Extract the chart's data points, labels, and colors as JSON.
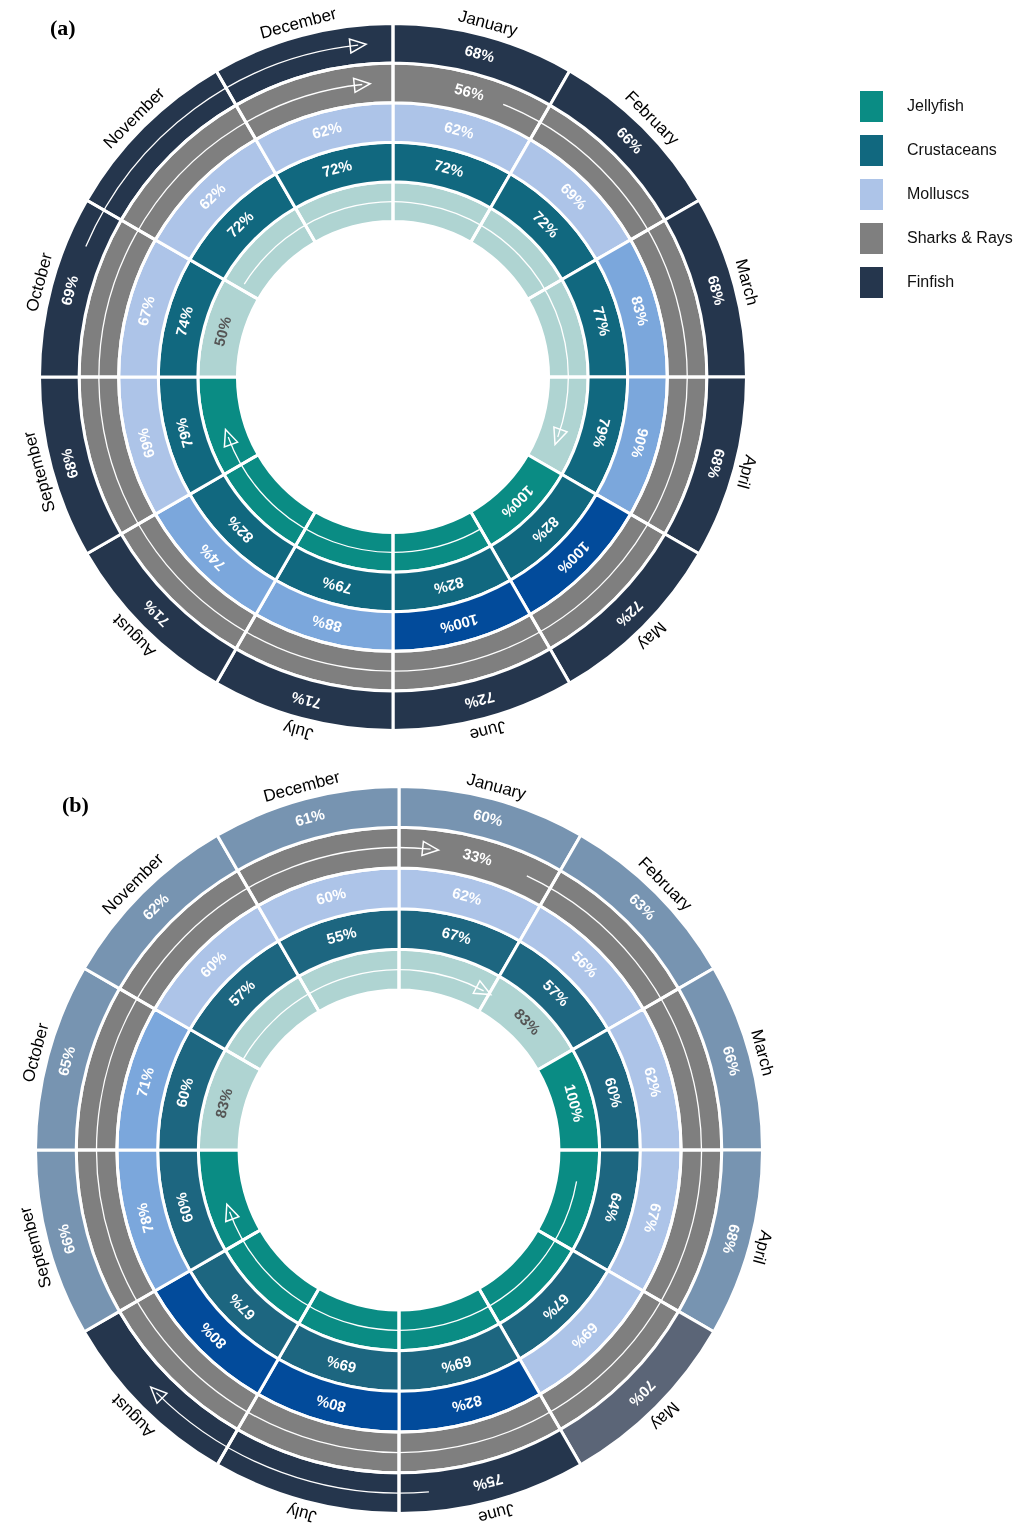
{
  "chart_data": [
    {
      "type": "other",
      "title": "(a)",
      "legend": "top right",
      "categories": [
        "January",
        "February",
        "March",
        "April",
        "May",
        "June",
        "July",
        "August",
        "September",
        "October",
        "November",
        "December"
      ],
      "series": [
        {
          "name": "Finfish",
          "color": "#25364d",
          "values": [
            68,
            66,
            68,
            68,
            72,
            72,
            71,
            71,
            68,
            69,
            null,
            null
          ],
          "colors": [
            "#25364d",
            "#25364d",
            "#25364d",
            "#25364d",
            "#25364d",
            "#25364d",
            "#25364d",
            "#25364d",
            "#25364d",
            "#25364d",
            "#25364d",
            "#25364d"
          ],
          "value_labels": [
            "68%",
            "66%",
            "68%",
            "68%",
            "72%",
            "72%",
            "71%",
            "71%",
            "68%",
            "69%",
            null,
            null
          ]
        },
        {
          "name": "Sharks & Rays",
          "color": "#7f7f7f",
          "values": [
            56,
            null,
            null,
            null,
            null,
            null,
            null,
            null,
            null,
            null,
            null,
            null
          ],
          "colors": [
            "#7f7f7f",
            "#7f7f7f",
            "#7f7f7f",
            "#7f7f7f",
            "#7f7f7f",
            "#7f7f7f",
            "#7f7f7f",
            "#7f7f7f",
            "#7f7f7f",
            "#7f7f7f",
            "#7f7f7f",
            "#7f7f7f"
          ],
          "value_labels": [
            "56%",
            null,
            null,
            null,
            null,
            null,
            null,
            null,
            null,
            null,
            null,
            null
          ]
        },
        {
          "name": "Molluscs",
          "color": "#adc4e8",
          "values": [
            62,
            69,
            83,
            90,
            100,
            100,
            88,
            74,
            69,
            67,
            62,
            62
          ],
          "colors": [
            "#adc4e8",
            "#adc4e8",
            "#7ba7dc",
            "#7ba7dc",
            "#024b9b",
            "#024b9b",
            "#7ba7dc",
            "#7ba7dc",
            "#adc4e8",
            "#adc4e8",
            "#adc4e8",
            "#adc4e8"
          ],
          "value_labels": [
            "62%",
            "69%",
            "83%",
            "90%",
            "100%",
            "100%",
            "88%",
            "74%",
            "69%",
            "67%",
            "62%",
            "62%"
          ]
        },
        {
          "name": "Crustaceans",
          "color": "#11687f",
          "values": [
            72,
            72,
            77,
            79,
            82,
            82,
            79,
            82,
            79,
            74,
            72,
            72
          ],
          "colors": [
            "#11687f",
            "#11687f",
            "#11687f",
            "#11687f",
            "#11687f",
            "#11687f",
            "#11687f",
            "#11687f",
            "#11687f",
            "#11687f",
            "#11687f",
            "#11687f"
          ],
          "value_labels": [
            "72%",
            "72%",
            "77%",
            "79%",
            "82%",
            "82%",
            "79%",
            "82%",
            "79%",
            "74%",
            "72%",
            "72%"
          ]
        },
        {
          "name": "Jellyfish",
          "color": "#0a8c84",
          "values": [
            null,
            null,
            null,
            null,
            100,
            null,
            null,
            null,
            null,
            50,
            null,
            null
          ],
          "colors": [
            "#afd4d2",
            "#afd4d2",
            "#afd4d2",
            "#afd4d2",
            "#0a8c84",
            "#0a8c84",
            "#0a8c84",
            "#0a8c84",
            "#0a8c84",
            "#afd4d2",
            "#afd4d2",
            "#afd4d2"
          ],
          "value_labels": [
            null,
            null,
            null,
            null,
            "100%",
            null,
            null,
            null,
            null,
            "50%",
            null,
            null
          ]
        }
      ]
    },
    {
      "type": "other",
      "title": "(b)",
      "categories": [
        "January",
        "February",
        "March",
        "April",
        "May",
        "June",
        "July",
        "August",
        "September",
        "October",
        "November",
        "December"
      ],
      "series": [
        {
          "values": [
            60,
            63,
            66,
            68,
            70,
            75,
            null,
            null,
            66,
            65,
            62,
            61
          ],
          "colors": [
            "#7794b1",
            "#7794b1",
            "#7794b1",
            "#7794b1",
            "#5b6577",
            "#25364d",
            "#25364d",
            "#25364d",
            "#7794b1",
            "#7794b1",
            "#7794b1",
            "#7794b1"
          ],
          "value_labels": [
            "60%",
            "63%",
            "66%",
            "68%",
            "70%",
            "75%",
            null,
            null,
            "66%",
            "65%",
            "62%",
            "61%"
          ]
        },
        {
          "values": [
            33,
            null,
            null,
            null,
            null,
            null,
            null,
            null,
            null,
            null,
            null,
            null
          ],
          "colors": [
            "#7f7f7f",
            "#7f7f7f",
            "#7f7f7f",
            "#7f7f7f",
            "#7f7f7f",
            "#7f7f7f",
            "#7f7f7f",
            "#7f7f7f",
            "#7f7f7f",
            "#7f7f7f",
            "#7f7f7f",
            "#7f7f7f"
          ],
          "value_labels": [
            "33%",
            null,
            null,
            null,
            null,
            null,
            null,
            null,
            null,
            null,
            null,
            null
          ]
        },
        {
          "values": [
            62,
            56,
            62,
            67,
            69,
            82,
            80,
            80,
            78,
            71,
            60,
            60
          ],
          "colors": [
            "#adc4e8",
            "#adc4e8",
            "#adc4e8",
            "#adc4e8",
            "#adc4e8",
            "#024b9b",
            "#024b9b",
            "#024b9b",
            "#7ba7dc",
            "#7ba7dc",
            "#adc4e8",
            "#adc4e8"
          ],
          "value_labels": [
            "62%",
            "56%",
            "62%",
            "67%",
            "69%",
            "82%",
            "80%",
            "80%",
            "78%",
            "71%",
            "60%",
            "60%"
          ]
        },
        {
          "values": [
            67,
            57,
            60,
            64,
            67,
            69,
            69,
            67,
            60,
            60,
            57,
            55
          ],
          "colors": [
            "#1d6680",
            "#1d6680",
            "#1d6680",
            "#1d6680",
            "#1d6680",
            "#1d6680",
            "#1d6680",
            "#1d6680",
            "#1d6680",
            "#1d6680",
            "#1d6680",
            "#1d6680"
          ],
          "value_labels": [
            "67%",
            "57%",
            "60%",
            "64%",
            "67%",
            "69%",
            "69%",
            "67%",
            "60%",
            "60%",
            "57%",
            "55%"
          ]
        },
        {
          "values": [
            null,
            83,
            100,
            null,
            null,
            null,
            null,
            null,
            null,
            83,
            null,
            null
          ],
          "colors": [
            "#afd4d2",
            "#afd4d2",
            "#0a8c84",
            "#0a8c84",
            "#0a8c84",
            "#0a8c84",
            "#0a8c84",
            "#0a8c84",
            "#0a8c84",
            "#afd4d2",
            "#afd4d2",
            "#afd4d2"
          ],
          "value_labels": [
            null,
            "83%",
            "100%",
            null,
            null,
            null,
            null,
            null,
            null,
            "83%",
            null,
            null
          ]
        }
      ]
    }
  ]
}
